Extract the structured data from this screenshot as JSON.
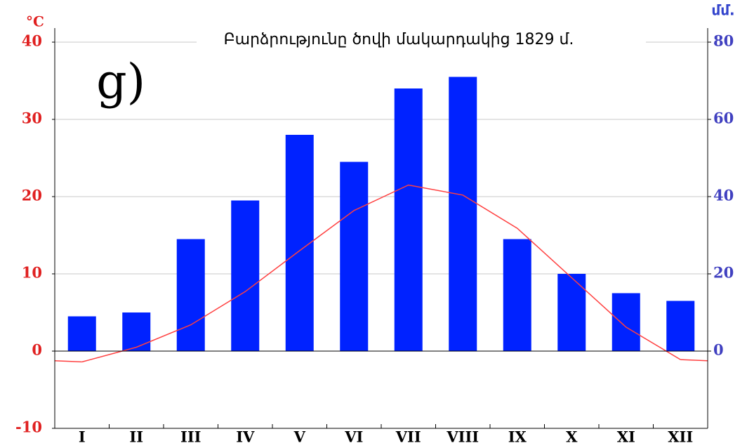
{
  "chart_data": {
    "type": "bar",
    "title": "Բարձրությունը ծովի մակարդակից 1829 մ.",
    "annotation": "ց)",
    "y_label": "°C",
    "y2_label": "մմ.",
    "categories": [
      "I",
      "II",
      "III",
      "IV",
      "V",
      "VI",
      "VII",
      "VIII",
      "IX",
      "X",
      "XI",
      "XII"
    ],
    "series": [
      {
        "type": "bar",
        "axis": "y2",
        "color": "#0022ff",
        "values": [
          9,
          10,
          29,
          39,
          56,
          49,
          68,
          71,
          29,
          20,
          15,
          13
        ]
      },
      {
        "type": "line",
        "axis": "y",
        "color": "#ff4040",
        "values": [
          -1.4,
          0.5,
          3.4,
          7.7,
          13,
          18.2,
          21.5,
          20.2,
          15.9,
          9.5,
          3.1,
          -1.1
        ]
      }
    ],
    "ylim": [
      -10,
      40
    ],
    "yticks": [
      -10,
      0,
      10,
      20,
      30,
      40
    ],
    "y2lim": [
      -20,
      80
    ],
    "y2ticks": [
      0,
      20,
      40,
      60,
      80
    ],
    "grid": true
  }
}
